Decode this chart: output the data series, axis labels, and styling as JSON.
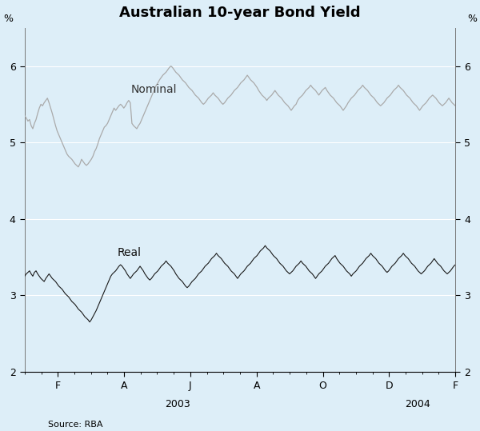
{
  "title": "Australian 10-year Bond Yield",
  "source": "Source: RBA",
  "ylabel_left": "%",
  "ylabel_right": "%",
  "background_color": "#ddeef8",
  "nominal_color": "#aaaaaa",
  "real_color": "#1a1a1a",
  "ylim": [
    2,
    6.5
  ],
  "yticks": [
    2,
    3,
    4,
    5,
    6
  ],
  "nominal_label": "Nominal",
  "real_label": "Real",
  "x_tick_labels": [
    "F",
    "A",
    "J",
    "A",
    "O",
    "D",
    "F"
  ],
  "x_tick_months": [
    1,
    3,
    5,
    7,
    9,
    11,
    13
  ],
  "total_months": 13,
  "nominal_data": [
    5.35,
    5.32,
    5.28,
    5.3,
    5.22,
    5.18,
    5.25,
    5.3,
    5.38,
    5.45,
    5.5,
    5.48,
    5.52,
    5.55,
    5.58,
    5.52,
    5.45,
    5.38,
    5.3,
    5.22,
    5.15,
    5.1,
    5.05,
    5.0,
    4.95,
    4.9,
    4.85,
    4.82,
    4.8,
    4.78,
    4.75,
    4.72,
    4.7,
    4.68,
    4.72,
    4.78,
    4.75,
    4.72,
    4.7,
    4.72,
    4.75,
    4.78,
    4.82,
    4.88,
    4.92,
    4.98,
    5.05,
    5.1,
    5.15,
    5.2,
    5.22,
    5.25,
    5.3,
    5.35,
    5.4,
    5.45,
    5.42,
    5.45,
    5.48,
    5.5,
    5.48,
    5.45,
    5.48,
    5.52,
    5.55,
    5.52,
    5.25,
    5.22,
    5.2,
    5.18,
    5.22,
    5.25,
    5.3,
    5.35,
    5.4,
    5.45,
    5.5,
    5.55,
    5.6,
    5.65,
    5.7,
    5.75,
    5.78,
    5.82,
    5.85,
    5.88,
    5.9,
    5.92,
    5.95,
    5.98,
    6.0,
    5.98,
    5.95,
    5.92,
    5.9,
    5.88,
    5.85,
    5.82,
    5.8,
    5.78,
    5.75,
    5.72,
    5.7,
    5.68,
    5.65,
    5.62,
    5.6,
    5.58,
    5.55,
    5.52,
    5.5,
    5.52,
    5.55,
    5.58,
    5.6,
    5.62,
    5.65,
    5.62,
    5.6,
    5.58,
    5.55,
    5.52,
    5.5,
    5.52,
    5.55,
    5.58,
    5.6,
    5.62,
    5.65,
    5.68,
    5.7,
    5.72,
    5.75,
    5.78,
    5.8,
    5.82,
    5.85,
    5.88,
    5.85,
    5.82,
    5.8,
    5.78,
    5.75,
    5.72,
    5.68,
    5.65,
    5.62,
    5.6,
    5.58,
    5.55,
    5.58,
    5.6,
    5.62,
    5.65,
    5.68,
    5.65,
    5.62,
    5.6,
    5.58,
    5.55,
    5.52,
    5.5,
    5.48,
    5.45,
    5.42,
    5.45,
    5.48,
    5.5,
    5.55,
    5.58,
    5.6,
    5.62,
    5.65,
    5.68,
    5.7,
    5.72,
    5.75,
    5.72,
    5.7,
    5.68,
    5.65,
    5.62,
    5.65,
    5.68,
    5.7,
    5.72,
    5.68,
    5.65,
    5.62,
    5.6,
    5.58,
    5.55,
    5.52,
    5.5,
    5.48,
    5.45,
    5.42,
    5.45,
    5.48,
    5.52,
    5.55,
    5.58,
    5.6,
    5.62,
    5.65,
    5.68,
    5.7,
    5.72,
    5.75,
    5.72,
    5.7,
    5.68,
    5.65,
    5.62,
    5.6,
    5.58,
    5.55,
    5.52,
    5.5,
    5.48,
    5.5,
    5.52,
    5.55,
    5.58,
    5.6,
    5.62,
    5.65,
    5.68,
    5.7,
    5.72,
    5.75,
    5.72,
    5.7,
    5.68,
    5.65,
    5.62,
    5.6,
    5.58,
    5.55,
    5.52,
    5.5,
    5.48,
    5.45,
    5.42,
    5.45,
    5.48,
    5.5,
    5.52,
    5.55,
    5.58,
    5.6,
    5.62,
    5.6,
    5.58,
    5.55,
    5.52,
    5.5,
    5.48,
    5.5,
    5.52,
    5.55,
    5.58,
    5.55,
    5.52,
    5.5,
    5.48
  ],
  "real_data": [
    3.25,
    3.28,
    3.3,
    3.32,
    3.28,
    3.25,
    3.3,
    3.32,
    3.28,
    3.25,
    3.22,
    3.2,
    3.18,
    3.22,
    3.25,
    3.28,
    3.25,
    3.22,
    3.2,
    3.18,
    3.15,
    3.12,
    3.1,
    3.08,
    3.05,
    3.02,
    3.0,
    2.98,
    2.95,
    2.92,
    2.9,
    2.88,
    2.85,
    2.82,
    2.8,
    2.78,
    2.75,
    2.72,
    2.7,
    2.68,
    2.65,
    2.68,
    2.72,
    2.76,
    2.8,
    2.85,
    2.9,
    2.95,
    3.0,
    3.05,
    3.1,
    3.15,
    3.2,
    3.25,
    3.28,
    3.3,
    3.32,
    3.35,
    3.38,
    3.4,
    3.38,
    3.35,
    3.32,
    3.28,
    3.25,
    3.22,
    3.25,
    3.28,
    3.3,
    3.32,
    3.35,
    3.38,
    3.35,
    3.32,
    3.28,
    3.25,
    3.22,
    3.2,
    3.22,
    3.25,
    3.28,
    3.3,
    3.32,
    3.35,
    3.38,
    3.4,
    3.42,
    3.45,
    3.42,
    3.4,
    3.38,
    3.35,
    3.32,
    3.28,
    3.25,
    3.22,
    3.2,
    3.18,
    3.15,
    3.12,
    3.1,
    3.12,
    3.15,
    3.18,
    3.2,
    3.22,
    3.25,
    3.28,
    3.3,
    3.32,
    3.35,
    3.38,
    3.4,
    3.42,
    3.45,
    3.48,
    3.5,
    3.52,
    3.55,
    3.52,
    3.5,
    3.48,
    3.45,
    3.42,
    3.4,
    3.38,
    3.35,
    3.32,
    3.3,
    3.28,
    3.25,
    3.22,
    3.25,
    3.28,
    3.3,
    3.32,
    3.35,
    3.38,
    3.4,
    3.42,
    3.45,
    3.48,
    3.5,
    3.52,
    3.55,
    3.58,
    3.6,
    3.62,
    3.65,
    3.62,
    3.6,
    3.58,
    3.55,
    3.52,
    3.5,
    3.48,
    3.45,
    3.42,
    3.4,
    3.38,
    3.35,
    3.32,
    3.3,
    3.28,
    3.3,
    3.32,
    3.35,
    3.38,
    3.4,
    3.42,
    3.45,
    3.42,
    3.4,
    3.38,
    3.35,
    3.32,
    3.3,
    3.28,
    3.25,
    3.22,
    3.25,
    3.28,
    3.3,
    3.32,
    3.35,
    3.38,
    3.4,
    3.42,
    3.45,
    3.48,
    3.5,
    3.52,
    3.48,
    3.45,
    3.42,
    3.4,
    3.38,
    3.35,
    3.32,
    3.3,
    3.28,
    3.25,
    3.28,
    3.3,
    3.32,
    3.35,
    3.38,
    3.4,
    3.42,
    3.45,
    3.48,
    3.5,
    3.52,
    3.55,
    3.52,
    3.5,
    3.48,
    3.45,
    3.42,
    3.4,
    3.38,
    3.35,
    3.32,
    3.3,
    3.32,
    3.35,
    3.38,
    3.4,
    3.42,
    3.45,
    3.48,
    3.5,
    3.52,
    3.55,
    3.52,
    3.5,
    3.48,
    3.45,
    3.42,
    3.4,
    3.38,
    3.35,
    3.32,
    3.3,
    3.28,
    3.3,
    3.32,
    3.35,
    3.38,
    3.4,
    3.42,
    3.45,
    3.48,
    3.45,
    3.42,
    3.4,
    3.38,
    3.35,
    3.32,
    3.3,
    3.28,
    3.3,
    3.32,
    3.35,
    3.38,
    3.4
  ]
}
